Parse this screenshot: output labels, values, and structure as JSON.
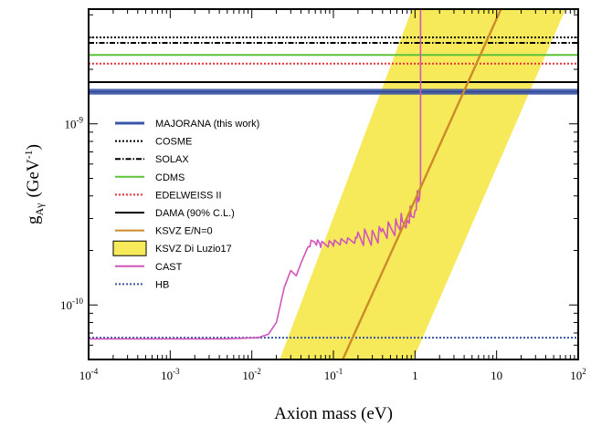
{
  "chart_data": {
    "type": "line",
    "xlabel": "Axion mass (eV)",
    "ylabel_main": "g",
    "ylabel_sub": "Aγ",
    "ylabel_unit": "(GeV",
    "ylabel_unit_exp": "-1",
    "ylabel_unit_close": ")",
    "xscale": "log",
    "yscale": "log",
    "xlim": [
      0.0001,
      100
    ],
    "ylim": [
      5e-11,
      4.3e-09
    ],
    "x_tick_labels": [
      {
        "base": "10",
        "exp": "-4",
        "value": 0.0001
      },
      {
        "base": "10",
        "exp": "-3",
        "value": 0.001
      },
      {
        "base": "10",
        "exp": "-2",
        "value": 0.01
      },
      {
        "base": "10",
        "exp": "-1",
        "value": 0.1
      },
      {
        "base": "1",
        "exp": "",
        "value": 1
      },
      {
        "base": "10",
        "exp": "",
        "value": 10
      },
      {
        "base": "10",
        "exp": "2",
        "value": 100
      }
    ],
    "y_tick_labels": [
      {
        "base": "10",
        "exp": "-10",
        "value": 1e-10
      },
      {
        "base": "10",
        "exp": "-9",
        "value": 1e-09
      }
    ],
    "legend_position": "left",
    "series": [
      {
        "name": "MAJORANA (this work)",
        "kind": "band_h",
        "color": "#3a55a8",
        "y": 1.5e-09,
        "y_low": 1.45e-09,
        "y_high": 1.56e-09,
        "style": "solid"
      },
      {
        "name": "COSME",
        "kind": "hline",
        "color": "#000000",
        "y": 3e-09,
        "style": "dotted"
      },
      {
        "name": "SOLAX",
        "kind": "hline",
        "color": "#000000",
        "y": 2.8e-09,
        "style": "dashdot"
      },
      {
        "name": "CDMS",
        "kind": "hline",
        "color": "#5cc23a",
        "y": 2.4e-09,
        "style": "solid"
      },
      {
        "name": "EDELWEISS II",
        "kind": "hline",
        "color": "#e8303a",
        "y": 2.15e-09,
        "style": "dotted"
      },
      {
        "name": "DAMA (90% C.L.)",
        "kind": "hline",
        "color": "#000000",
        "y": 1.7e-09,
        "style": "solid"
      },
      {
        "name": "KSVZ E/N=0",
        "kind": "line",
        "color": "#cc8a2a",
        "style": "solid",
        "x": [
          0.13,
          1.0,
          4.0,
          25.0
        ],
        "y": [
          5e-11,
          3.8e-10,
          1.52e-09,
          9.5e-09
        ]
      },
      {
        "name": "KSVZ Di Luzio17",
        "kind": "band_diag",
        "color": "#f7ea5a",
        "style": "fill",
        "x_left": [
          0.022,
          0.92
        ],
        "x_right": [
          0.95,
          70.0
        ],
        "y": [
          5e-11,
          4.3e-09
        ]
      },
      {
        "name": "CAST",
        "kind": "line",
        "color": "#d055b8",
        "style": "solid",
        "x": [
          0.0001,
          0.005,
          0.012,
          0.016,
          0.02,
          0.025,
          0.03,
          0.035,
          0.04,
          0.05,
          0.06,
          0.07,
          0.1,
          0.15,
          0.2,
          0.3,
          0.4,
          0.5,
          0.6,
          0.7,
          0.8,
          0.9,
          1.0,
          1.1,
          1.17,
          1.17
        ],
        "y": [
          6.5e-11,
          6.5e-11,
          6.6e-11,
          6.9e-11,
          8e-11,
          1.25e-10,
          1.55e-10,
          1.45e-10,
          1.7e-10,
          2.15e-10,
          2.25e-10,
          2.15e-10,
          2.2e-10,
          2.25e-10,
          2.3e-10,
          2.4e-10,
          2.5e-10,
          2.6e-10,
          2.75e-10,
          2.9e-10,
          3e-10,
          3.2e-10,
          3.5e-10,
          4e-10,
          4.6e-10,
          4.3e-09
        ]
      },
      {
        "name": "HB",
        "kind": "hline",
        "color": "#3a55a8",
        "y": 6.6e-11,
        "style": "dotted"
      }
    ]
  }
}
